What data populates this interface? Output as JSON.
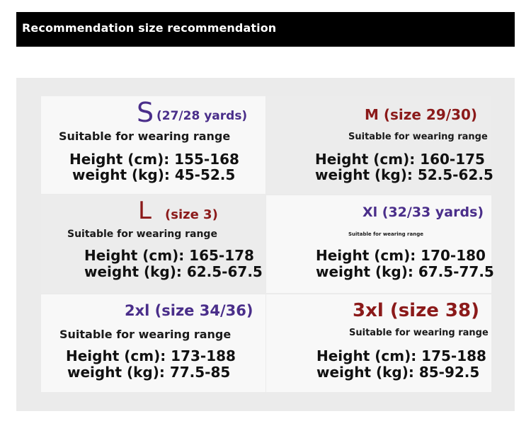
{
  "header": {
    "title": "Recommendation size recommendation"
  },
  "sizes": [
    {
      "size_letter": "S",
      "size_rest": "(27/28 yards)",
      "range": "Suitable for wearing range",
      "height": "Height (cm): 155-168",
      "weight": "weight (kg): 45-52.5"
    },
    {
      "size_label": "M (size 29/30)",
      "range": "Suitable for wearing range",
      "height": "Height (cm): 160-175",
      "weight": "weight (kg): 52.5-62.5"
    },
    {
      "size_letter": "L",
      "size_rest": "(size 3)",
      "range": "Suitable for wearing range",
      "height": "Height (cm): 165-178",
      "weight": "weight (kg): 62.5-67.5"
    },
    {
      "size_label": "Xl (32/33 yards)",
      "range": "Suitable for wearing range",
      "height": "Height (cm): 170-180",
      "weight": "weight (kg): 67.5-77.5"
    },
    {
      "size_label": "2xl (size 34/36)",
      "range": "Suitable for wearing range",
      "height": "Height (cm): 173-188",
      "weight": "weight (kg): 77.5-85"
    },
    {
      "size_label": "3xl (size 38)",
      "range": "Suitable for wearing range",
      "height": "Height (cm): 175-188",
      "weight": "weight (kg): 85-92.5"
    }
  ],
  "colors": {
    "purple": "#4a2e8a",
    "maroon": "#8b1a1a",
    "header_bg": "#000000"
  }
}
